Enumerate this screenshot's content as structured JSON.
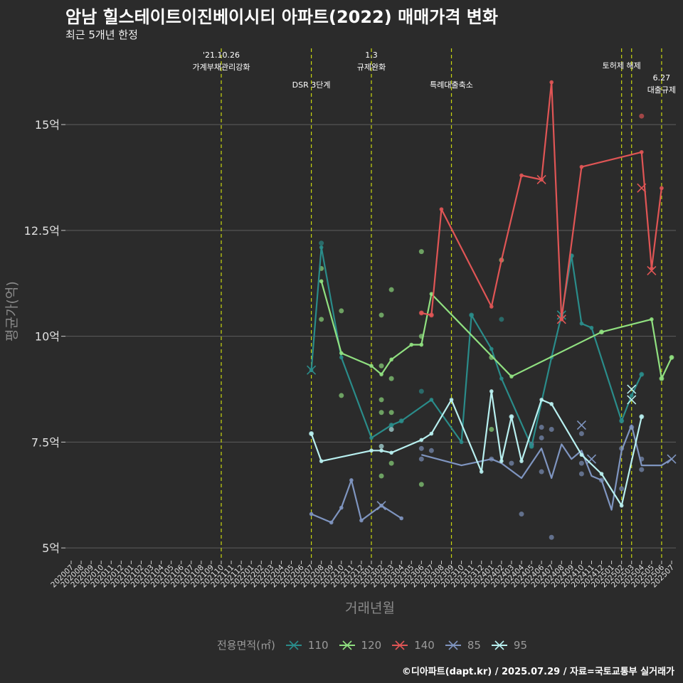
{
  "title": "암남 힐스테이트이진베이시티 아파트(2022) 매매가격 변화",
  "subtitle": "최근 5개년 한정",
  "caption": "©디아파트(dapt.kr) / 2025.07.29 / 자료=국토교통부 실거래가",
  "legend_title": "전용면적(㎡)",
  "colors": {
    "background": "#2b2b2b",
    "grid": "#5e5e5e",
    "event_line": "#c8d60f",
    "110": "#2a8c8a",
    "120": "#90e080",
    "140": "#e05555",
    "85": "#7f95c0",
    "95": "#b8f0f0"
  },
  "chart_data": {
    "type": "line",
    "title": "암남 힐스테이트이진베이시티 아파트(2022) 매매가격 변화",
    "subtitle": "최근 5개년 한정",
    "xlabel": "거래년월",
    "ylabel": "평균가(억)",
    "grid": true,
    "legend_position": "bottom",
    "y_ticks": [
      5,
      7.5,
      10,
      12.5,
      15
    ],
    "y_tick_labels": [
      "5억",
      "7.5억",
      "10억",
      "12.5억",
      "15억"
    ],
    "ylim": [
      4.7,
      16.8
    ],
    "categories": [
      "202007",
      "202008",
      "202009",
      "202010",
      "202011",
      "202012",
      "202101",
      "202102",
      "202103",
      "202104",
      "202105",
      "202106",
      "202107",
      "202108",
      "202109",
      "202110",
      "202111",
      "202112",
      "202201",
      "202202",
      "202203",
      "202204",
      "202205",
      "202206",
      "202207",
      "202208",
      "202209",
      "202210",
      "202211",
      "202212",
      "202301",
      "202302",
      "202303",
      "202304",
      "202305",
      "202306",
      "202307",
      "202308",
      "202309",
      "202310",
      "202311",
      "202312",
      "202401",
      "202402",
      "202403",
      "202404",
      "202405",
      "202406",
      "202407",
      "202408",
      "202409",
      "202410",
      "202411",
      "202412",
      "202501",
      "202502",
      "202503",
      "202504",
      "202505",
      "202506",
      "202507"
    ],
    "events": [
      {
        "date": "202110",
        "label": "'21.10.26\n가계부채관리강화",
        "row": 1
      },
      {
        "date": "202207",
        "label": "DSR 3단계",
        "row": 2
      },
      {
        "date": "202301",
        "label": "1.3\n규제완화",
        "row": 1
      },
      {
        "date": "202309",
        "label": "특례대출축소",
        "row": 2
      },
      {
        "date": "202502",
        "label": "토허제 해제",
        "row": 1
      },
      {
        "date": "202503",
        "label": "",
        "row": 1
      },
      {
        "date": "202506",
        "label": "6.27\n대출규제",
        "row": 3
      }
    ],
    "series": [
      {
        "name": "110",
        "line": [
          [
            "202207",
            9.2
          ],
          [
            "202208",
            12.1
          ],
          [
            "202210",
            9.5
          ],
          [
            "202301",
            7.6
          ],
          [
            "202303",
            7.9
          ],
          [
            "202304",
            8.0
          ],
          [
            "202307",
            8.5
          ],
          [
            "202310",
            7.5
          ],
          [
            "202311",
            10.5
          ],
          [
            "202401",
            9.7
          ],
          [
            "202402",
            9.0
          ],
          [
            "202405",
            7.4
          ],
          [
            "202407",
            9.5
          ],
          [
            "202408",
            10.5
          ],
          [
            "202409",
            11.9
          ],
          [
            "202410",
            10.3
          ],
          [
            "202411",
            10.2
          ],
          [
            "202502",
            8.0
          ],
          [
            "202503",
            8.6
          ],
          [
            "202504",
            9.1
          ]
        ],
        "points": [
          [
            "202208",
            12.2
          ],
          [
            "202303",
            7.9
          ],
          [
            "202304",
            8.0
          ],
          [
            "202311",
            10.5
          ],
          [
            "202402",
            10.4
          ],
          [
            "202405",
            7.4
          ],
          [
            "202409",
            11.9
          ],
          [
            "202502",
            8.0
          ],
          [
            "202504",
            9.1
          ],
          [
            "202306",
            8.7
          ]
        ],
        "crosses": [
          [
            "202207",
            9.2
          ],
          [
            "202408",
            10.5
          ]
        ]
      },
      {
        "name": "120",
        "line": [
          [
            "202208",
            11.3
          ],
          [
            "202210",
            9.6
          ],
          [
            "202301",
            9.3
          ],
          [
            "202302",
            9.1
          ],
          [
            "202303",
            9.45
          ],
          [
            "202305",
            9.8
          ],
          [
            "202306",
            9.8
          ],
          [
            "202307",
            11.0
          ],
          [
            "202403",
            9.05
          ],
          [
            "202412",
            10.1
          ],
          [
            "202505",
            10.4
          ],
          [
            "202506",
            9.0
          ],
          [
            "202507",
            9.5
          ]
        ],
        "points": [
          [
            "202208",
            11.6
          ],
          [
            "202208",
            10.4
          ],
          [
            "202210",
            10.6
          ],
          [
            "202210",
            8.6
          ],
          [
            "202302",
            10.5
          ],
          [
            "202302",
            8.5
          ],
          [
            "202302",
            8.2
          ],
          [
            "202302",
            9.3
          ],
          [
            "202303",
            11.1
          ],
          [
            "202303",
            9.0
          ],
          [
            "202303",
            8.2
          ],
          [
            "202303",
            7.0
          ],
          [
            "202302",
            6.7
          ],
          [
            "202306",
            12.0
          ],
          [
            "202306",
            10.0
          ],
          [
            "202306",
            6.5
          ],
          [
            "202401",
            9.5
          ],
          [
            "202401",
            7.8
          ],
          [
            "202402",
            11.8
          ],
          [
            "202412",
            10.1
          ],
          [
            "202507",
            9.5
          ],
          [
            "202506",
            9.0
          ]
        ],
        "crosses": []
      },
      {
        "name": "140",
        "line": [
          [
            "202306",
            10.55
          ],
          [
            "202307",
            10.5
          ],
          [
            "202308",
            13.0
          ],
          [
            "202401",
            10.7
          ],
          [
            "202402",
            11.8
          ],
          [
            "202404",
            13.8
          ],
          [
            "202406",
            13.7
          ],
          [
            "202407",
            16.0
          ],
          [
            "202408",
            10.4
          ],
          [
            "202410",
            14.0
          ],
          [
            "202504",
            14.35
          ],
          [
            "202505",
            11.6
          ],
          [
            "202506",
            13.5
          ]
        ],
        "points": [
          [
            "202504",
            15.2
          ],
          [
            "202306",
            10.55
          ],
          [
            "202307",
            10.5
          ]
        ],
        "crosses": [
          [
            "202406",
            13.7
          ],
          [
            "202504",
            13.5
          ],
          [
            "202505",
            11.55
          ],
          [
            "202408",
            10.4
          ]
        ]
      },
      {
        "name": "85",
        "line": [
          [
            "202207",
            5.8
          ],
          [
            "202209",
            5.6
          ],
          [
            "202210",
            5.95
          ],
          [
            "202211",
            6.6
          ],
          [
            "202212",
            5.65
          ],
          [
            "202302",
            6.0
          ],
          [
            "202304",
            5.7
          ]
        ],
        "points": [
          [
            "202306",
            7.1
          ],
          [
            "202306",
            7.35
          ],
          [
            "202307",
            7.3
          ],
          [
            "202401",
            7.1
          ],
          [
            "202403",
            7.0
          ],
          [
            "202404",
            5.8
          ],
          [
            "202405",
            7.45
          ],
          [
            "202406",
            7.6
          ],
          [
            "202406",
            7.85
          ],
          [
            "202406",
            6.8
          ],
          [
            "202407",
            7.8
          ],
          [
            "202407",
            5.25
          ],
          [
            "202410",
            7.7
          ],
          [
            "202410",
            7.0
          ],
          [
            "202410",
            6.75
          ],
          [
            "202502",
            7.35
          ],
          [
            "202502",
            6.4
          ],
          [
            "202503",
            7.85
          ],
          [
            "202504",
            7.1
          ],
          [
            "202504",
            6.85
          ],
          [
            "202412",
            6.6
          ]
        ],
        "crosses": [
          [
            "202302",
            6.0
          ],
          [
            "202410",
            7.9
          ],
          [
            "202411",
            7.1
          ],
          [
            "202507",
            7.1
          ]
        ],
        "line2": [
          [
            "202306",
            7.2
          ],
          [
            "202310",
            6.95
          ],
          [
            "202401",
            7.1
          ],
          [
            "202402",
            7.0
          ],
          [
            "202404",
            6.65
          ],
          [
            "202406",
            7.35
          ],
          [
            "202407",
            6.65
          ],
          [
            "202408",
            7.45
          ],
          [
            "202409",
            7.1
          ],
          [
            "202410",
            7.3
          ],
          [
            "202411",
            6.7
          ],
          [
            "202412",
            6.6
          ],
          [
            "202501",
            5.9
          ],
          [
            "202502",
            7.3
          ],
          [
            "202503",
            7.9
          ],
          [
            "202504",
            6.95
          ],
          [
            "202506",
            6.95
          ],
          [
            "202507",
            7.1
          ]
        ]
      },
      {
        "name": "95",
        "line": [
          [
            "202207",
            7.7
          ],
          [
            "202208",
            7.05
          ],
          [
            "202301",
            7.3
          ],
          [
            "202302",
            7.3
          ],
          [
            "202303",
            7.25
          ],
          [
            "202306",
            7.55
          ],
          [
            "202307",
            7.7
          ],
          [
            "202309",
            8.5
          ],
          [
            "202312",
            6.8
          ],
          [
            "202401",
            8.7
          ],
          [
            "202402",
            7.05
          ],
          [
            "202403",
            8.1
          ],
          [
            "202404",
            7.05
          ],
          [
            "202406",
            8.5
          ],
          [
            "202407",
            8.4
          ],
          [
            "202410",
            7.2
          ],
          [
            "202412",
            6.75
          ],
          [
            "202502",
            6.0
          ],
          [
            "202504",
            8.1
          ]
        ],
        "points": [
          [
            "202207",
            7.7
          ],
          [
            "202302",
            7.4
          ],
          [
            "202303",
            7.8
          ],
          [
            "202403",
            8.1
          ],
          [
            "202504",
            8.1
          ]
        ],
        "crosses": [
          [
            "202503",
            8.5
          ],
          [
            "202503",
            8.75
          ]
        ]
      }
    ]
  }
}
